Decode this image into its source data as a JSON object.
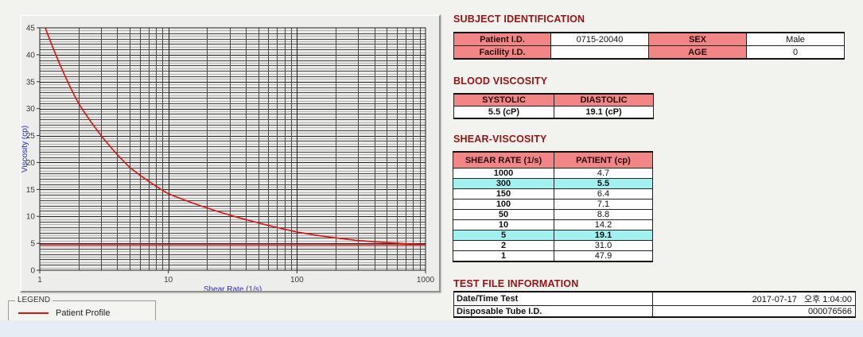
{
  "colors": {
    "header_pink": "#f28585",
    "highlight_cyan": "#a2f1f1",
    "section_title_red": "#9c1212",
    "series_red": "#dc1414",
    "axis_label_blue": "#2a2ad2"
  },
  "chart_data": {
    "type": "line",
    "title": "",
    "xlabel": "Shear Rate (1/s)",
    "ylabel": "Viscosity (cp)",
    "x_scale": "log",
    "xlim": [
      1,
      1000
    ],
    "ylim": [
      0,
      45
    ],
    "x_major_ticks": [
      1,
      10,
      100,
      1000
    ],
    "y_major_ticks": [
      0,
      5,
      10,
      15,
      20,
      25,
      30,
      35,
      40,
      45
    ],
    "grid": "dense",
    "axis_label_color": "#2a2ad2",
    "series": [
      {
        "name": "Patient Profile",
        "color": "#dc1414",
        "x": [
          1,
          2,
          5,
          10,
          50,
          100,
          150,
          300,
          1000
        ],
        "y": [
          47.9,
          31.0,
          19.1,
          14.2,
          8.8,
          7.1,
          6.4,
          5.5,
          4.7
        ]
      }
    ],
    "reference_line": {
      "y": 4.7,
      "color": "#dc1414"
    },
    "legend": {
      "title": "LEGEND",
      "position": "below-left",
      "entries": [
        {
          "label": "Patient Profile",
          "color": "#dc1414"
        }
      ]
    }
  },
  "tables": {
    "subject": {
      "title": "SUBJECT IDENTIFICATION",
      "rows": [
        {
          "label1": "Patient I.D.",
          "value1": "0715-20040",
          "label2": "SEX",
          "value2": "Male"
        },
        {
          "label1": "Facility I.D.",
          "value1": "",
          "label2": "AGE",
          "value2": "0"
        }
      ]
    },
    "blood": {
      "title": "BLOOD VISCOSITY",
      "headers": [
        "SYSTOLIC",
        "DIASTOLIC"
      ],
      "values": [
        "5.5 (cP)",
        "19.1 (cP)"
      ]
    },
    "shear": {
      "title": "SHEAR-VISCOSITY",
      "headers": [
        "SHEAR RATE (1/s)",
        "PATIENT (cp)"
      ],
      "rows": [
        {
          "rate": "1000",
          "patient": "4.7",
          "highlight": false
        },
        {
          "rate": "300",
          "patient": "5.5",
          "highlight": true
        },
        {
          "rate": "150",
          "patient": "6.4",
          "highlight": false
        },
        {
          "rate": "100",
          "patient": "7.1",
          "highlight": false
        },
        {
          "rate": "50",
          "patient": "8.8",
          "highlight": false
        },
        {
          "rate": "10",
          "patient": "14.2",
          "highlight": false
        },
        {
          "rate": "5",
          "patient": "19.1",
          "highlight": true
        },
        {
          "rate": "2",
          "patient": "31.0",
          "highlight": false
        },
        {
          "rate": "1",
          "patient": "47.9",
          "highlight": false
        }
      ]
    },
    "test_file": {
      "title": "TEST FILE INFORMATION",
      "rows": [
        {
          "label": "Date/Time Test",
          "value": "2017-07-17   오후 1:04:00"
        },
        {
          "label": "Disposable Tube I.D.",
          "value": "000076566"
        }
      ]
    }
  }
}
